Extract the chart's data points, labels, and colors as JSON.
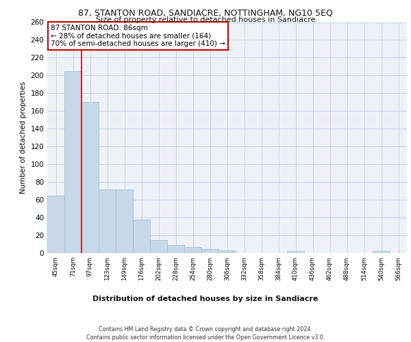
{
  "title": "87, STANTON ROAD, SANDIACRE, NOTTINGHAM, NG10 5EQ",
  "subtitle": "Size of property relative to detached houses in Sandiacre",
  "xlabel": "Distribution of detached houses by size in Sandiacre",
  "ylabel": "Number of detached properties",
  "bar_color": "#c8d8e8",
  "bar_edge_color": "#a0b8cc",
  "categories": [
    "45sqm",
    "71sqm",
    "97sqm",
    "123sqm",
    "149sqm",
    "176sqm",
    "202sqm",
    "228sqm",
    "254sqm",
    "280sqm",
    "306sqm",
    "332sqm",
    "358sqm",
    "384sqm",
    "410sqm",
    "436sqm",
    "462sqm",
    "488sqm",
    "514sqm",
    "540sqm",
    "566sqm"
  ],
  "values": [
    65,
    205,
    170,
    72,
    72,
    38,
    15,
    9,
    7,
    5,
    3,
    0,
    0,
    0,
    2,
    0,
    0,
    0,
    0,
    2,
    0
  ],
  "ylim": [
    0,
    260
  ],
  "yticks": [
    0,
    20,
    40,
    60,
    80,
    100,
    120,
    140,
    160,
    180,
    200,
    220,
    240,
    260
  ],
  "property_line_x": 1.5,
  "annotation_text": "87 STANTON ROAD: 86sqm\n← 28% of detached houses are smaller (164)\n70% of semi-detached houses are larger (410) →",
  "annotation_box_color": "#ffffff",
  "annotation_box_edge": "#cc0000",
  "property_line_color": "#cc0000",
  "grid_color": "#c8d4e0",
  "bg_color": "#eef2f7",
  "footer_line1": "Contains HM Land Registry data © Crown copyright and database right 2024.",
  "footer_line2": "Contains public sector information licensed under the Open Government Licence v3.0."
}
